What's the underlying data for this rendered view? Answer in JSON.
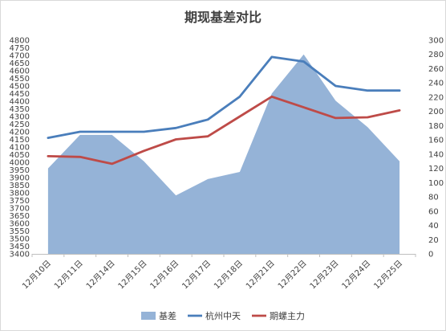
{
  "chart_data": {
    "type": "line",
    "title": "期现基差对比",
    "categories": [
      "12月10日",
      "12月11日",
      "12月14日",
      "12月15日",
      "12月16日",
      "12月17日",
      "12月18日",
      "12月21日",
      "12月22日",
      "12月23日",
      "12月24日",
      "12月25日"
    ],
    "left_axis": {
      "min": 3400,
      "max": 4800,
      "step": 50
    },
    "right_axis": {
      "min": 0,
      "max": 300,
      "step": 20
    },
    "grid": false,
    "legend_position": "bottom",
    "series": [
      {
        "name": "基差",
        "kind": "area",
        "axis": "right",
        "color": "#95b3d7",
        "values": [
          120,
          167,
          167,
          130,
          82,
          105,
          115,
          225,
          280,
          215,
          178,
          130
        ]
      },
      {
        "name": "杭州中天",
        "kind": "line",
        "axis": "left",
        "color": "#4a7ebb",
        "values": [
          4160,
          4200,
          4200,
          4200,
          4225,
          4280,
          4430,
          4690,
          4660,
          4500,
          4470,
          4470
        ]
      },
      {
        "name": "期螺主力",
        "kind": "line",
        "axis": "left",
        "color": "#be4b48",
        "values": [
          4040,
          4035,
          3990,
          4075,
          4150,
          4170,
          4300,
          4430,
          4360,
          4290,
          4295,
          4340
        ]
      }
    ]
  }
}
